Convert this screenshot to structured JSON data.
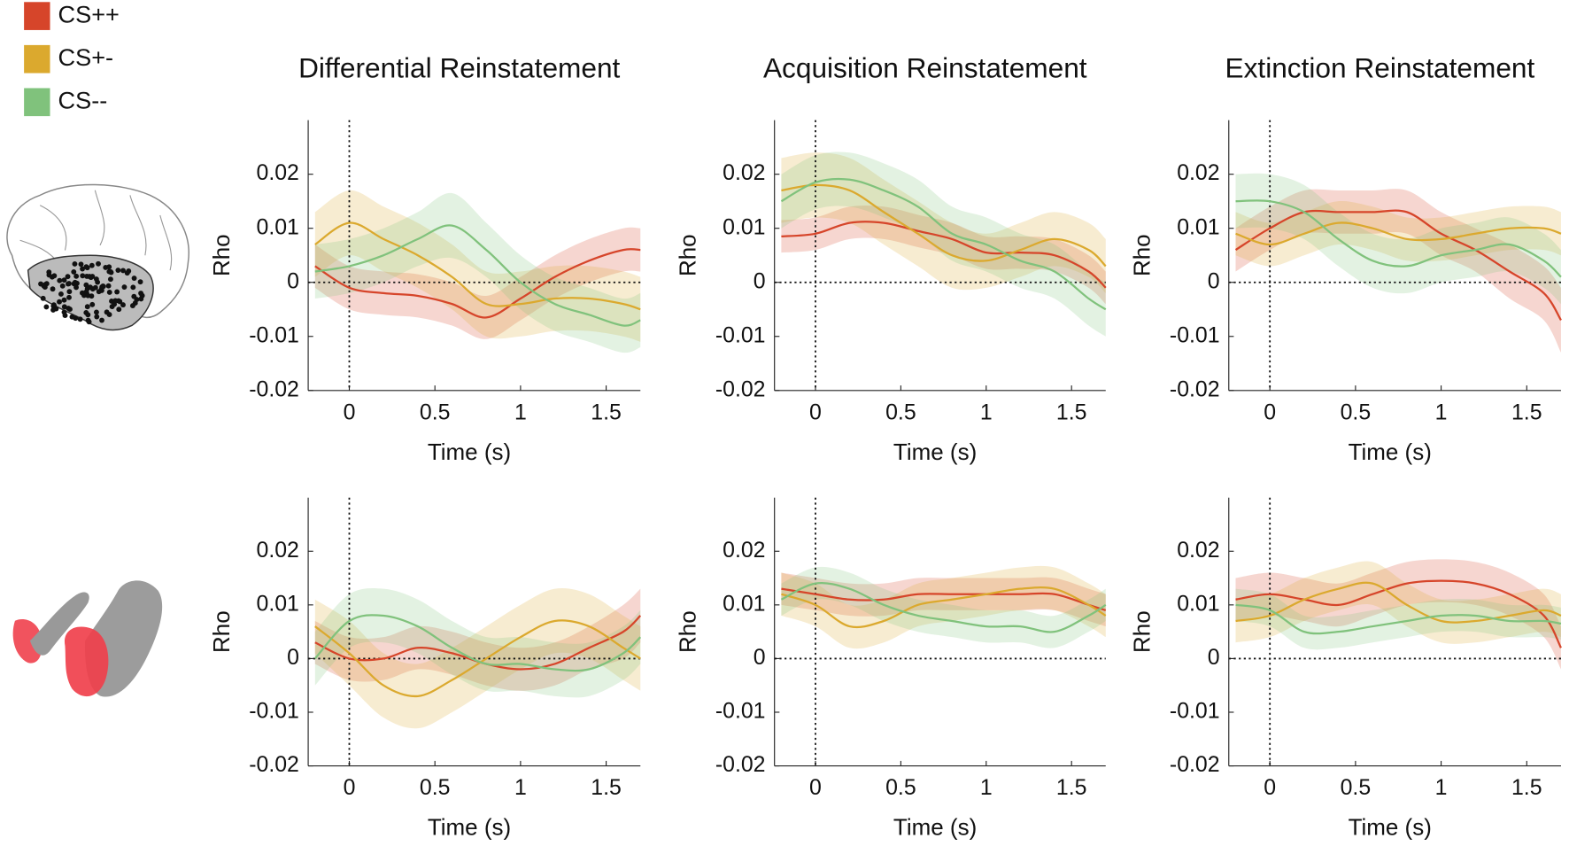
{
  "legend": [
    {
      "name": "CS++",
      "color": "#d6452a"
    },
    {
      "name": "CS+-",
      "color": "#dba92e"
    },
    {
      "name": "CS--",
      "color": "#80c27c"
    }
  ],
  "chart_data": [
    {
      "type": "line",
      "title": "Differential Reinstatement",
      "ylabel": "Rho",
      "xlabel": "Time (s)",
      "x": [
        -0.2,
        0,
        0.2,
        0.4,
        0.6,
        0.8,
        1.0,
        1.2,
        1.4,
        1.6,
        1.7
      ],
      "xlim": [
        -0.24,
        1.7
      ],
      "xticks": [
        0,
        0.5,
        1,
        1.5
      ],
      "ylim": [
        -0.02,
        0.03
      ],
      "yticks": [
        -0.02,
        -0.01,
        0,
        0.01,
        0.02
      ],
      "series": [
        {
          "values": [
            0.003,
            -0.001,
            -0.002,
            -0.0025,
            -0.004,
            -0.0065,
            -0.003,
            0.001,
            0.004,
            0.006,
            0.006
          ],
          "errors": [
            0.004,
            0.004,
            0.004,
            0.004,
            0.004,
            0.004,
            0.004,
            0.004,
            0.004,
            0.004,
            0.004
          ]
        },
        {
          "values": [
            0.007,
            0.011,
            0.008,
            0.005,
            0.001,
            -0.004,
            -0.004,
            -0.003,
            -0.003,
            -0.004,
            -0.005
          ],
          "errors": [
            0.006,
            0.006,
            0.006,
            0.006,
            0.006,
            0.006,
            0.006,
            0.006,
            0.006,
            0.006,
            0.006
          ]
        },
        {
          "values": [
            0.002,
            0.003,
            0.005,
            0.008,
            0.0105,
            0.006,
            0.0,
            -0.004,
            -0.006,
            -0.008,
            -0.007
          ],
          "errors": [
            0.005,
            0.005,
            0.005,
            0.005,
            0.006,
            0.005,
            0.005,
            0.005,
            0.005,
            0.005,
            0.005
          ]
        }
      ]
    },
    {
      "type": "line",
      "title": "Acquisition Reinstatement",
      "ylabel": "Rho",
      "xlabel": "Time (s)",
      "x": [
        -0.2,
        0,
        0.2,
        0.4,
        0.6,
        0.8,
        1.0,
        1.2,
        1.4,
        1.6,
        1.7
      ],
      "xlim": [
        -0.24,
        1.7
      ],
      "xticks": [
        0,
        0.5,
        1,
        1.5
      ],
      "ylim": [
        -0.02,
        0.03
      ],
      "yticks": [
        -0.02,
        -0.01,
        0,
        0.01,
        0.02
      ],
      "series": [
        {
          "values": [
            0.0085,
            0.009,
            0.011,
            0.011,
            0.0095,
            0.008,
            0.0055,
            0.0055,
            0.005,
            0.002,
            -0.001
          ],
          "errors": [
            0.003,
            0.003,
            0.003,
            0.003,
            0.003,
            0.003,
            0.003,
            0.003,
            0.003,
            0.003,
            0.003
          ]
        },
        {
          "values": [
            0.017,
            0.018,
            0.017,
            0.013,
            0.009,
            0.005,
            0.004,
            0.006,
            0.008,
            0.006,
            0.003
          ],
          "errors": [
            0.006,
            0.006,
            0.006,
            0.006,
            0.006,
            0.006,
            0.005,
            0.005,
            0.005,
            0.005,
            0.005
          ]
        },
        {
          "values": [
            0.015,
            0.0185,
            0.019,
            0.017,
            0.014,
            0.009,
            0.007,
            0.004,
            0.002,
            -0.003,
            -0.005
          ],
          "errors": [
            0.005,
            0.005,
            0.005,
            0.005,
            0.005,
            0.005,
            0.005,
            0.005,
            0.005,
            0.005,
            0.005
          ]
        }
      ]
    },
    {
      "type": "line",
      "title": "Extinction Reinstatement",
      "ylabel": "Rho",
      "xlabel": "Time (s)",
      "x": [
        -0.2,
        0,
        0.2,
        0.4,
        0.6,
        0.8,
        1.0,
        1.2,
        1.4,
        1.6,
        1.7
      ],
      "xlim": [
        -0.24,
        1.7
      ],
      "xticks": [
        0,
        0.5,
        1,
        1.5
      ],
      "ylim": [
        -0.02,
        0.03
      ],
      "yticks": [
        -0.02,
        -0.01,
        0,
        0.01,
        0.02
      ],
      "series": [
        {
          "values": [
            0.006,
            0.01,
            0.013,
            0.013,
            0.013,
            0.013,
            0.009,
            0.006,
            0.002,
            -0.002,
            -0.007
          ],
          "errors": [
            0.004,
            0.004,
            0.004,
            0.004,
            0.004,
            0.004,
            0.004,
            0.004,
            0.005,
            0.005,
            0.006
          ]
        },
        {
          "values": [
            0.009,
            0.007,
            0.009,
            0.011,
            0.01,
            0.008,
            0.008,
            0.009,
            0.01,
            0.01,
            0.009
          ],
          "errors": [
            0.004,
            0.004,
            0.004,
            0.004,
            0.004,
            0.004,
            0.004,
            0.004,
            0.004,
            0.004,
            0.004
          ]
        },
        {
          "values": [
            0.015,
            0.015,
            0.013,
            0.008,
            0.004,
            0.003,
            0.005,
            0.006,
            0.007,
            0.004,
            0.001
          ],
          "errors": [
            0.005,
            0.005,
            0.005,
            0.005,
            0.005,
            0.005,
            0.005,
            0.005,
            0.005,
            0.005,
            0.005
          ]
        }
      ]
    },
    {
      "type": "line",
      "ylabel": "Rho",
      "xlabel": "Time (s)",
      "x": [
        -0.2,
        0,
        0.2,
        0.4,
        0.6,
        0.8,
        1.0,
        1.2,
        1.4,
        1.6,
        1.7
      ],
      "xlim": [
        -0.24,
        1.7
      ],
      "xticks": [
        0,
        0.5,
        1,
        1.5
      ],
      "ylim": [
        -0.02,
        0.03
      ],
      "yticks": [
        -0.02,
        -0.01,
        0,
        0.01,
        0.02
      ],
      "series": [
        {
          "values": [
            0.003,
            0.0,
            0.0,
            0.002,
            0.001,
            -0.001,
            -0.002,
            -0.001,
            0.002,
            0.005,
            0.008
          ],
          "errors": [
            0.004,
            0.004,
            0.004,
            0.004,
            0.004,
            0.004,
            0.004,
            0.004,
            0.004,
            0.005,
            0.005
          ]
        },
        {
          "values": [
            0.006,
            0.001,
            -0.005,
            -0.007,
            -0.004,
            0.0,
            0.004,
            0.007,
            0.006,
            0.002,
            0.0
          ],
          "errors": [
            0.005,
            0.006,
            0.006,
            0.006,
            0.006,
            0.006,
            0.006,
            0.006,
            0.006,
            0.006,
            0.006
          ]
        },
        {
          "values": [
            0.0,
            0.007,
            0.008,
            0.006,
            0.002,
            -0.001,
            -0.001,
            -0.002,
            -0.002,
            0.001,
            0.004
          ],
          "errors": [
            0.005,
            0.005,
            0.005,
            0.005,
            0.005,
            0.005,
            0.005,
            0.005,
            0.005,
            0.005,
            0.005
          ]
        }
      ]
    },
    {
      "type": "line",
      "ylabel": "Rho",
      "xlabel": "Time (s)",
      "x": [
        -0.2,
        0,
        0.2,
        0.4,
        0.6,
        0.8,
        1.0,
        1.2,
        1.4,
        1.6,
        1.7
      ],
      "xlim": [
        -0.24,
        1.7
      ],
      "xticks": [
        0,
        0.5,
        1,
        1.5
      ],
      "ylim": [
        -0.02,
        0.03
      ],
      "yticks": [
        -0.02,
        -0.01,
        0,
        0.01,
        0.02
      ],
      "series": [
        {
          "values": [
            0.013,
            0.012,
            0.011,
            0.011,
            0.012,
            0.012,
            0.012,
            0.012,
            0.012,
            0.01,
            0.009
          ],
          "errors": [
            0.003,
            0.003,
            0.003,
            0.003,
            0.003,
            0.003,
            0.003,
            0.003,
            0.003,
            0.003,
            0.003
          ]
        },
        {
          "values": [
            0.012,
            0.01,
            0.006,
            0.007,
            0.01,
            0.011,
            0.012,
            0.013,
            0.013,
            0.01,
            0.008
          ],
          "errors": [
            0.004,
            0.004,
            0.004,
            0.004,
            0.004,
            0.004,
            0.004,
            0.004,
            0.004,
            0.004,
            0.004
          ]
        },
        {
          "values": [
            0.011,
            0.014,
            0.013,
            0.01,
            0.008,
            0.007,
            0.006,
            0.006,
            0.005,
            0.008,
            0.01
          ],
          "errors": [
            0.003,
            0.003,
            0.003,
            0.003,
            0.003,
            0.003,
            0.003,
            0.003,
            0.003,
            0.003,
            0.003
          ]
        }
      ]
    },
    {
      "type": "line",
      "ylabel": "Rho",
      "xlabel": "Time (s)",
      "x": [
        -0.2,
        0,
        0.2,
        0.4,
        0.6,
        0.8,
        1.0,
        1.2,
        1.4,
        1.6,
        1.7
      ],
      "xlim": [
        -0.24,
        1.7
      ],
      "xticks": [
        0,
        0.5,
        1,
        1.5
      ],
      "ylim": [
        -0.02,
        0.03
      ],
      "yticks": [
        -0.02,
        -0.01,
        0,
        0.01,
        0.02
      ],
      "series": [
        {
          "values": [
            0.011,
            0.012,
            0.011,
            0.01,
            0.012,
            0.014,
            0.0145,
            0.014,
            0.012,
            0.008,
            0.002
          ],
          "errors": [
            0.004,
            0.004,
            0.004,
            0.004,
            0.004,
            0.004,
            0.004,
            0.004,
            0.004,
            0.004,
            0.004
          ]
        },
        {
          "values": [
            0.007,
            0.008,
            0.011,
            0.013,
            0.014,
            0.01,
            0.007,
            0.007,
            0.008,
            0.009,
            0.008
          ],
          "errors": [
            0.004,
            0.004,
            0.004,
            0.004,
            0.004,
            0.004,
            0.004,
            0.004,
            0.004,
            0.004,
            0.004
          ]
        },
        {
          "values": [
            0.01,
            0.009,
            0.005,
            0.005,
            0.006,
            0.007,
            0.008,
            0.008,
            0.007,
            0.007,
            0.0065
          ],
          "errors": [
            0.003,
            0.003,
            0.003,
            0.003,
            0.003,
            0.003,
            0.003,
            0.003,
            0.003,
            0.003,
            0.003
          ]
        }
      ]
    }
  ]
}
